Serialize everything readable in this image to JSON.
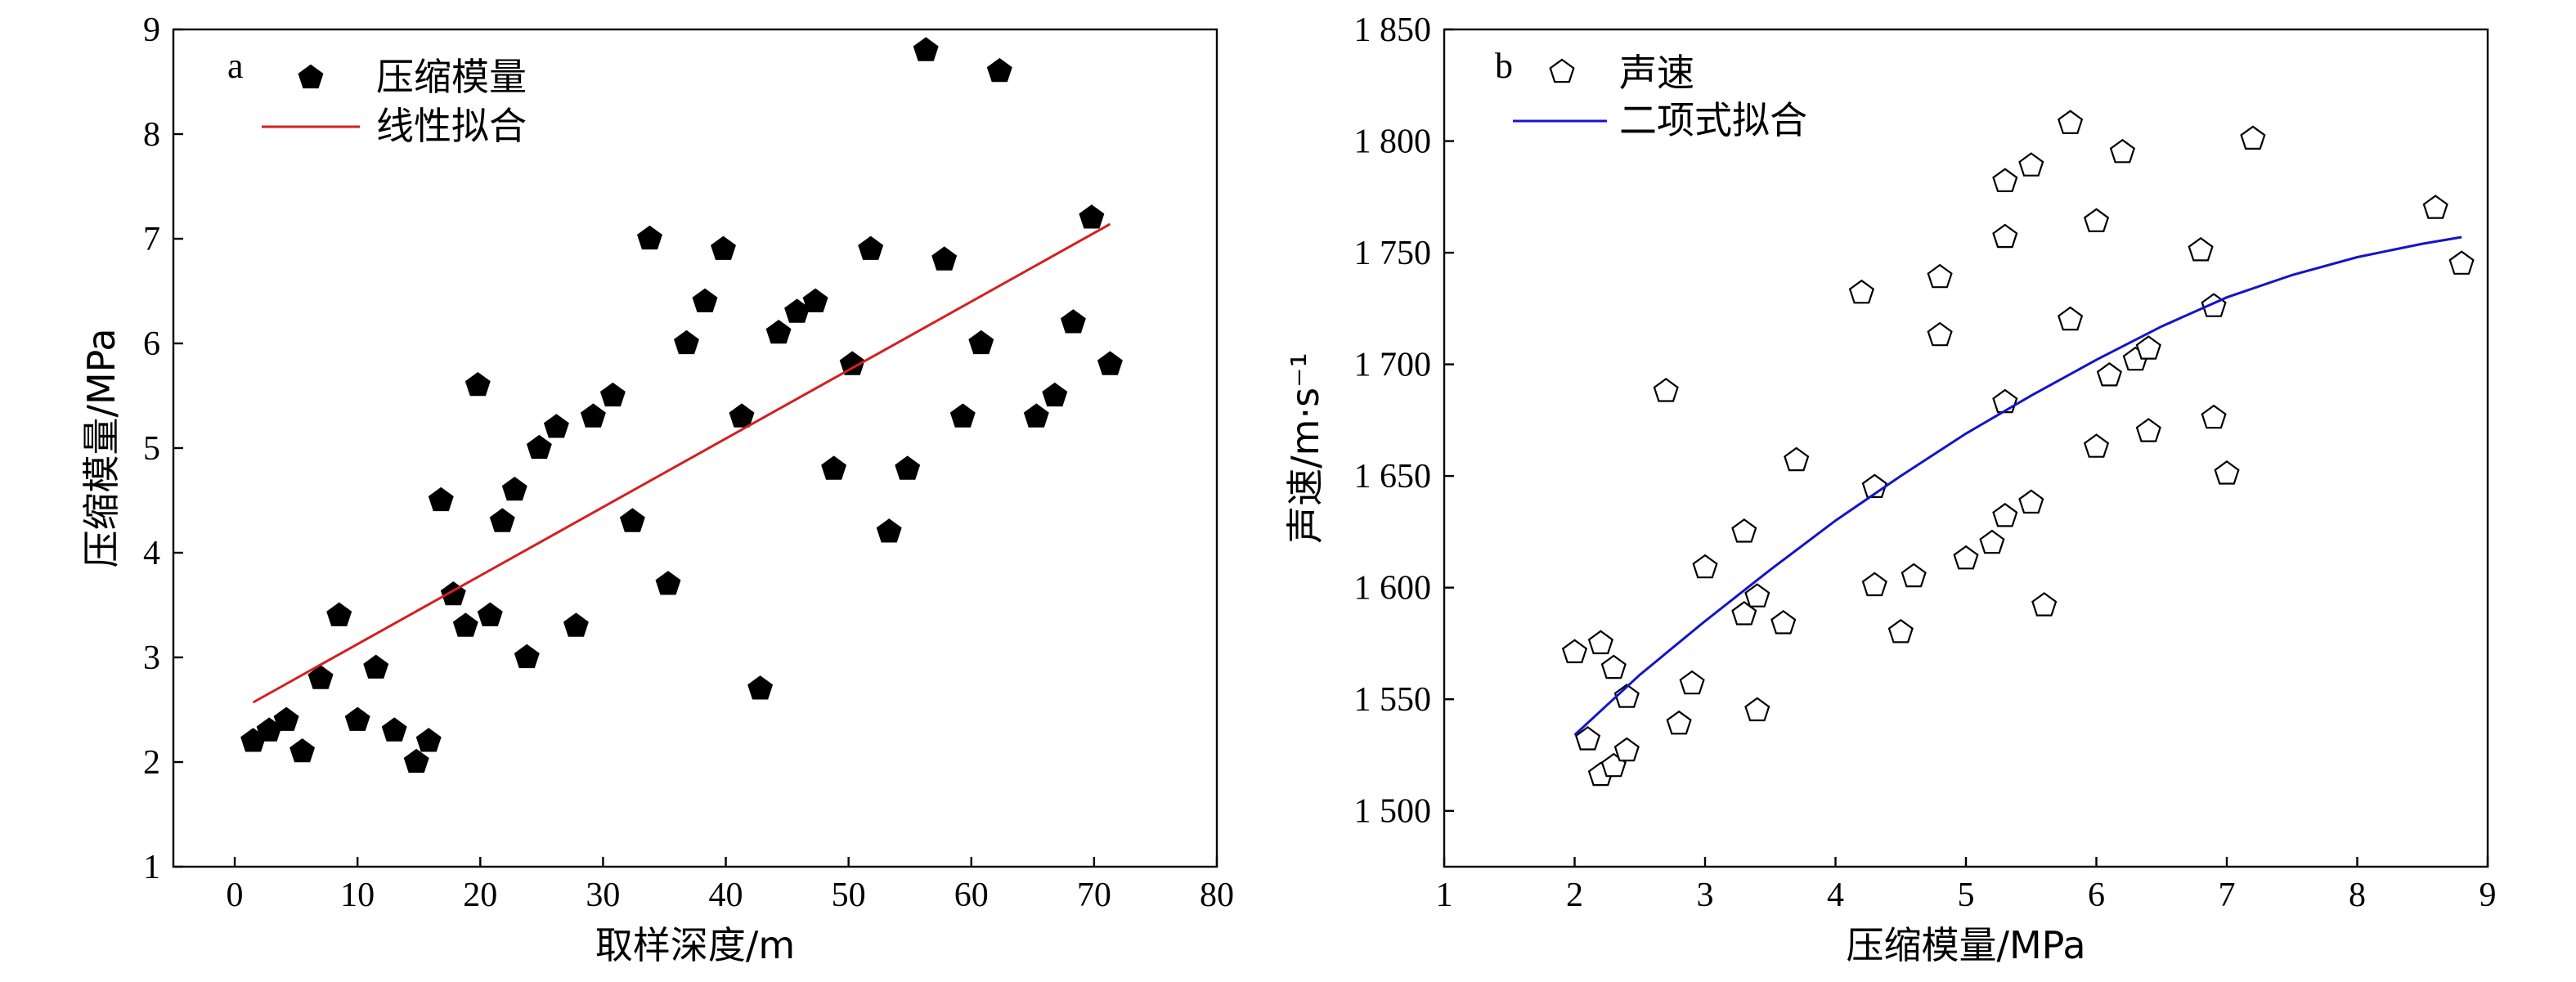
{
  "chart_data": [
    {
      "type": "scatter",
      "panel_label": "a",
      "xlabel": "取样深度/m",
      "ylabel": "压缩模量/MPa",
      "xlim": [
        -5,
        80
      ],
      "ylim": [
        1,
        9
      ],
      "x_ticks": [
        0,
        10,
        20,
        30,
        40,
        50,
        60,
        70,
        80
      ],
      "y_ticks": [
        1,
        2,
        3,
        4,
        5,
        6,
        7,
        8,
        9
      ],
      "x_tick_labels": [
        "0",
        "10",
        "20",
        "30",
        "40",
        "50",
        "60",
        "70",
        "80"
      ],
      "y_tick_labels": [
        "1",
        "2",
        "3",
        "4",
        "5",
        "6",
        "7",
        "8",
        "9"
      ],
      "legend_position": "top-left",
      "grid": false,
      "series": [
        {
          "name": "压缩模量",
          "kind": "points",
          "marker": "filled-pentagon",
          "color": "#000000",
          "points": [
            [
              1.5,
              2.2
            ],
            [
              2.8,
              2.3
            ],
            [
              4.2,
              2.4
            ],
            [
              5.5,
              2.1
            ],
            [
              7,
              2.8
            ],
            [
              8.5,
              3.4
            ],
            [
              10,
              2.4
            ],
            [
              11.5,
              2.9
            ],
            [
              13,
              2.3
            ],
            [
              14.8,
              2.0
            ],
            [
              15.8,
              2.2
            ],
            [
              16.8,
              4.5
            ],
            [
              17.8,
              3.6
            ],
            [
              18.8,
              3.3
            ],
            [
              19.8,
              5.6
            ],
            [
              20.8,
              3.4
            ],
            [
              21.8,
              4.3
            ],
            [
              22.8,
              4.6
            ],
            [
              23.8,
              3.0
            ],
            [
              24.8,
              5.0
            ],
            [
              26.2,
              5.2
            ],
            [
              27.8,
              3.3
            ],
            [
              29.2,
              5.3
            ],
            [
              30.8,
              5.5
            ],
            [
              32.4,
              4.3
            ],
            [
              33.8,
              7.0
            ],
            [
              35.3,
              3.7
            ],
            [
              36.8,
              6.0
            ],
            [
              38.3,
              6.4
            ],
            [
              39.8,
              6.9
            ],
            [
              41.3,
              5.3
            ],
            [
              42.8,
              2.7
            ],
            [
              44.3,
              6.1
            ],
            [
              45.8,
              6.3
            ],
            [
              47.3,
              6.4
            ],
            [
              48.8,
              4.8
            ],
            [
              50.3,
              5.8
            ],
            [
              51.8,
              6.9
            ],
            [
              53.3,
              4.2
            ],
            [
              54.8,
              4.8
            ],
            [
              56.3,
              8.8
            ],
            [
              57.8,
              6.8
            ],
            [
              59.3,
              5.3
            ],
            [
              60.8,
              6.0
            ],
            [
              62.3,
              8.6
            ],
            [
              65.3,
              5.3
            ],
            [
              66.8,
              5.5
            ],
            [
              68.3,
              6.2
            ],
            [
              69.8,
              7.2
            ],
            [
              71.3,
              5.8
            ]
          ]
        },
        {
          "name": "线性拟合",
          "kind": "line",
          "color": "#d42020",
          "x": [
            1.5,
            71.3
          ],
          "y": [
            2.57,
            7.14
          ]
        }
      ]
    },
    {
      "type": "scatter",
      "panel_label": "b",
      "xlabel": "压缩模量/MPa",
      "ylabel": "声速/m·s⁻¹",
      "xlim": [
        1,
        9
      ],
      "ylim": [
        1475,
        1850
      ],
      "x_ticks": [
        1,
        2,
        3,
        4,
        5,
        6,
        7,
        8,
        9
      ],
      "y_ticks": [
        1500,
        1550,
        1600,
        1650,
        1700,
        1750,
        1800,
        1850
      ],
      "x_tick_labels": [
        "1",
        "2",
        "3",
        "4",
        "5",
        "6",
        "7",
        "8",
        "9"
      ],
      "y_tick_labels": [
        "1 500",
        "1 550",
        "1 600",
        "1 650",
        "1 700",
        "1 750",
        "1 800",
        "1 850"
      ],
      "legend_position": "top-left",
      "grid": false,
      "series": [
        {
          "name": "声速",
          "kind": "points",
          "marker": "open-pentagon",
          "color": "#000000",
          "points": [
            [
              2.0,
              1571
            ],
            [
              2.1,
              1532
            ],
            [
              2.2,
              1575
            ],
            [
              2.2,
              1516
            ],
            [
              2.3,
              1564
            ],
            [
              2.3,
              1520
            ],
            [
              2.4,
              1551
            ],
            [
              2.4,
              1527
            ],
            [
              2.7,
              1688
            ],
            [
              2.8,
              1539
            ],
            [
              2.9,
              1557
            ],
            [
              3.0,
              1609
            ],
            [
              3.3,
              1625
            ],
            [
              3.3,
              1588
            ],
            [
              3.4,
              1596
            ],
            [
              3.4,
              1545
            ],
            [
              3.6,
              1584
            ],
            [
              3.7,
              1657
            ],
            [
              4.2,
              1732
            ],
            [
              4.3,
              1645
            ],
            [
              4.3,
              1601
            ],
            [
              4.5,
              1580
            ],
            [
              4.6,
              1605
            ],
            [
              4.8,
              1739
            ],
            [
              4.8,
              1713
            ],
            [
              5.0,
              1613
            ],
            [
              5.2,
              1620
            ],
            [
              5.3,
              1782
            ],
            [
              5.3,
              1757
            ],
            [
              5.3,
              1683
            ],
            [
              5.3,
              1632
            ],
            [
              5.5,
              1789
            ],
            [
              5.5,
              1638
            ],
            [
              5.6,
              1592
            ],
            [
              5.8,
              1808
            ],
            [
              5.8,
              1720
            ],
            [
              6.0,
              1764
            ],
            [
              6.0,
              1663
            ],
            [
              6.1,
              1695
            ],
            [
              6.2,
              1795
            ],
            [
              6.3,
              1702
            ],
            [
              6.4,
              1707
            ],
            [
              6.4,
              1670
            ],
            [
              6.8,
              1751
            ],
            [
              6.9,
              1726
            ],
            [
              6.9,
              1676
            ],
            [
              7.0,
              1651
            ],
            [
              7.2,
              1801
            ],
            [
              8.6,
              1770
            ],
            [
              8.8,
              1745
            ]
          ]
        },
        {
          "name": "二项式拟合",
          "kind": "curve",
          "color": "#1414c8",
          "x": [
            2.0,
            2.5,
            3.0,
            3.5,
            4.0,
            4.5,
            5.0,
            5.5,
            6.0,
            6.5,
            7.0,
            7.5,
            8.0,
            8.5,
            8.8
          ],
          "y": [
            1534,
            1561,
            1585,
            1608,
            1630,
            1650,
            1669,
            1686,
            1702,
            1717,
            1730,
            1740,
            1748,
            1754,
            1757
          ]
        }
      ]
    }
  ]
}
